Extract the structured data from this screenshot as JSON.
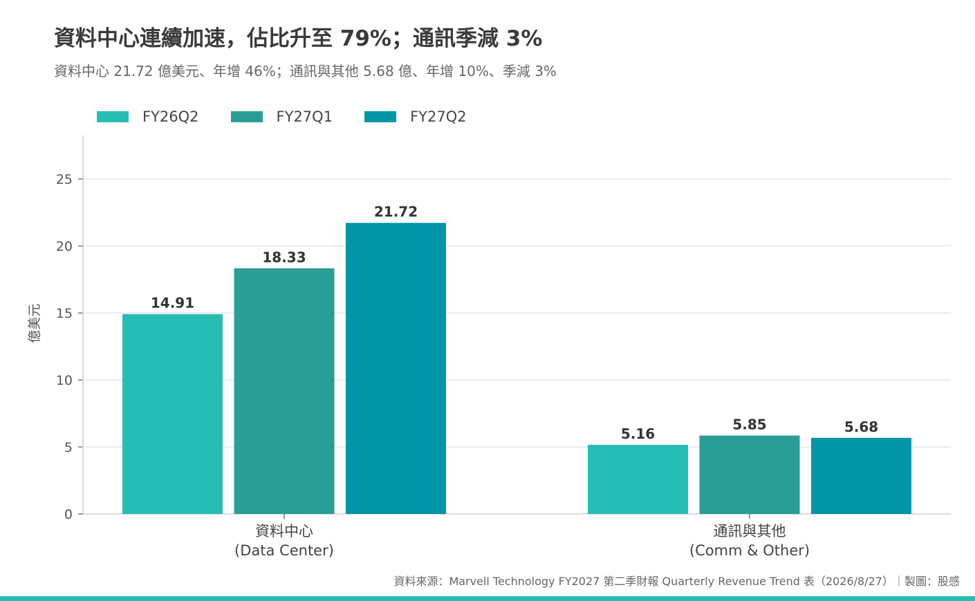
{
  "title": "資料中心連續加速，佔比升至 79%；通訊季減 3%",
  "subtitle": "資料中心 21.72 億美元、年增 46%；通訊與其他 5.68 億、年增 10%、季減 3%",
  "source": "資料來源：Marvell Technology FY2027 第二季財報 Quarterly Revenue Trend 表（2026/8/27）｜製圖：股感",
  "colors": {
    "accent_bar": "#26bdb5",
    "grid": "#e6e6e6",
    "axis": "#cccccc"
  },
  "chart_data": {
    "type": "bar",
    "categories": [
      "資料中心\n(Data Center)",
      "通訊與其他\n(Comm & Other)"
    ],
    "series": [
      {
        "name": "FY26Q2",
        "color": "#26bdb5",
        "values": [
          14.91,
          5.16
        ]
      },
      {
        "name": "FY27Q1",
        "color": "#289e97",
        "values": [
          18.33,
          5.85
        ]
      },
      {
        "name": "FY27Q2",
        "color": "#0096a6",
        "values": [
          21.72,
          5.68
        ]
      }
    ],
    "ylabel": "億美元",
    "xlabel": "",
    "ylim": [
      0,
      28
    ],
    "yticks": [
      0,
      5,
      10,
      15,
      20,
      25
    ],
    "grid": true,
    "legend": "top-left"
  }
}
